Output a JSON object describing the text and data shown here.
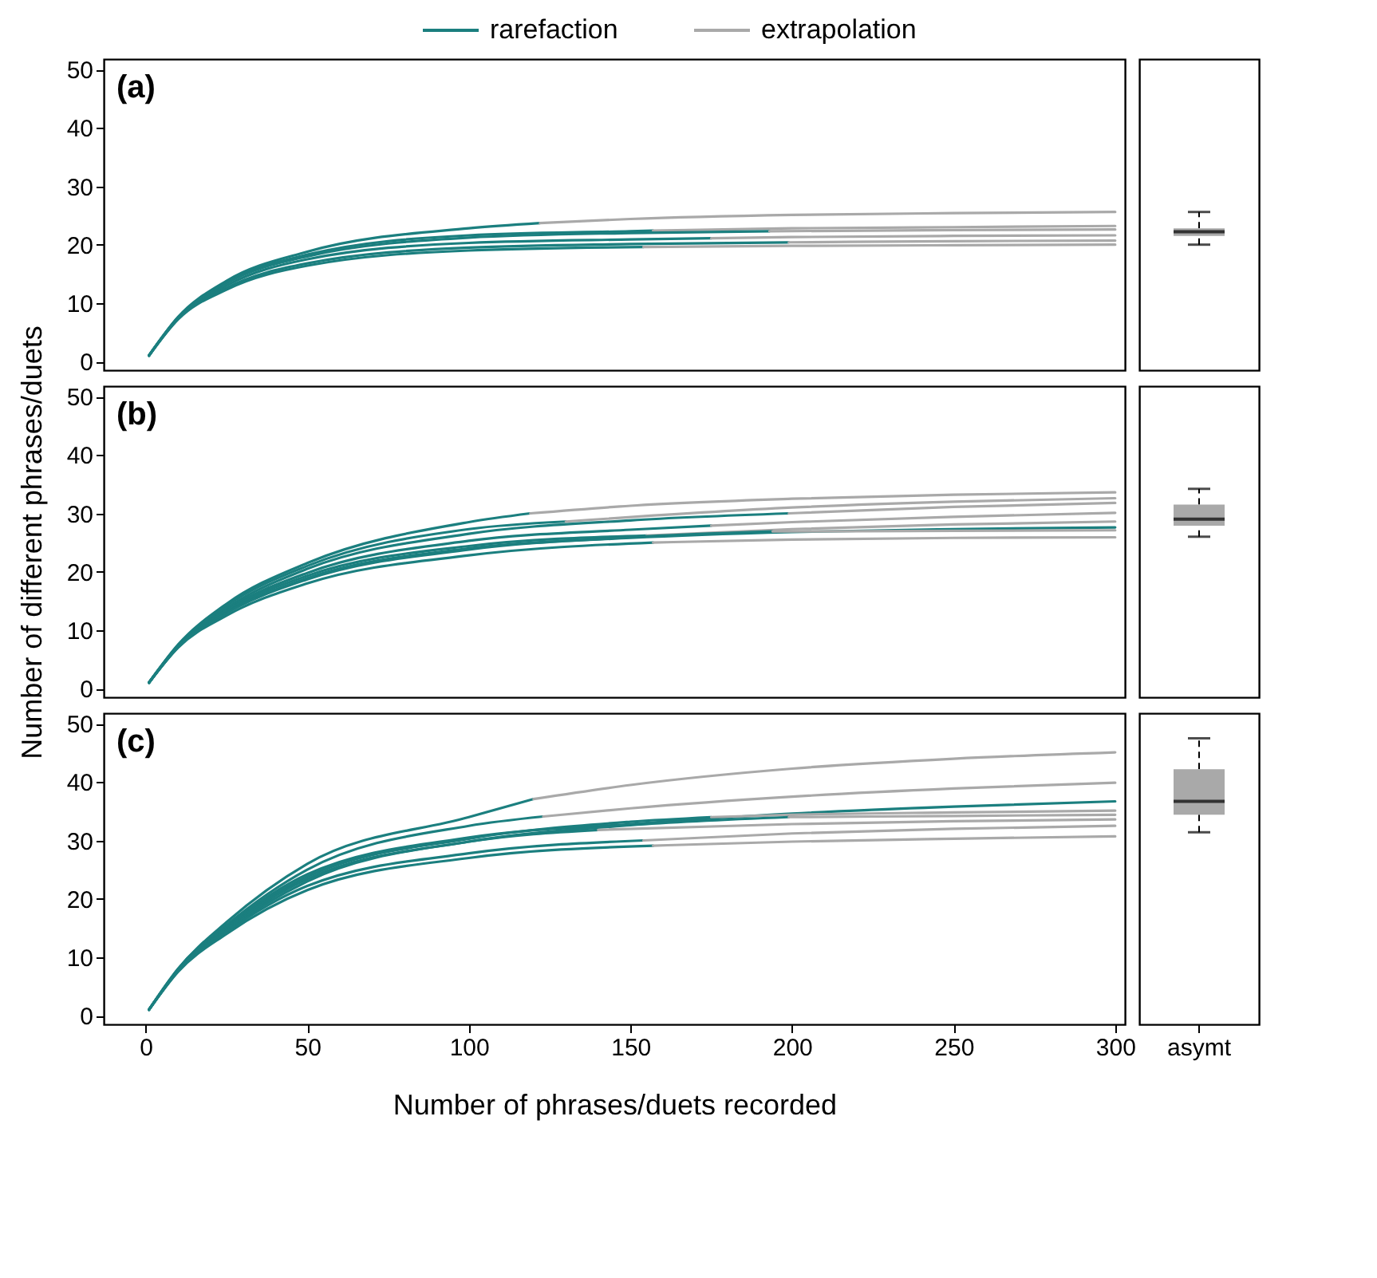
{
  "chart_data": [
    {
      "type": "line",
      "annotations": [
        "(a)"
      ],
      "xlim": [
        -13,
        303
      ],
      "ylim": [
        -1.5,
        51.8
      ],
      "xticks": [
        0,
        50,
        100,
        150,
        200,
        250,
        300
      ],
      "yticks": [
        0,
        10,
        20,
        30,
        40,
        50
      ],
      "tick_labels": "y",
      "legend": "top",
      "series": [
        {
          "name": "rarefaction",
          "color": "#1b7f7f",
          "x": [
            1,
            10,
            25,
            50,
            100,
            122
          ],
          "values": [
            1,
            7.6,
            13.8,
            18.8,
            22.8,
            23.7
          ]
        },
        {
          "name": "extrapolation",
          "color": "#a9a9a9",
          "x": [
            122,
            150,
            200,
            250,
            300
          ],
          "values": [
            23.7,
            24.4,
            25.1,
            25.4,
            25.6
          ]
        },
        {
          "color": "#1b7f7f",
          "x": [
            1,
            10,
            25,
            50,
            100,
            150,
            157
          ],
          "values": [
            1,
            7.5,
            13.5,
            18.3,
            21.6,
            22.3,
            22.4
          ]
        },
        {
          "color": "#a9a9a9",
          "x": [
            157,
            200,
            250,
            300
          ],
          "values": [
            22.4,
            22.8,
            23.0,
            23.2
          ]
        },
        {
          "color": "#1b7f7f",
          "x": [
            1,
            10,
            25,
            50,
            100,
            150,
            193
          ],
          "values": [
            1,
            7.5,
            13.4,
            18,
            21.2,
            22,
            22.3
          ]
        },
        {
          "color": "#a9a9a9",
          "x": [
            193,
            250,
            300
          ],
          "values": [
            22.3,
            22.5,
            22.6
          ]
        },
        {
          "color": "#1b7f7f",
          "x": [
            1,
            10,
            25,
            50,
            100,
            150,
            175
          ],
          "values": [
            1,
            7.4,
            13,
            17.5,
            20.3,
            20.9,
            21.1
          ]
        },
        {
          "color": "#a9a9a9",
          "x": [
            175,
            200,
            250,
            300
          ],
          "values": [
            21.1,
            21.3,
            21.5,
            21.6
          ]
        },
        {
          "color": "#1b7f7f",
          "x": [
            1,
            10,
            25,
            50,
            100,
            150,
            199
          ],
          "values": [
            1,
            7.3,
            12.6,
            16.8,
            19.5,
            20.1,
            20.4
          ]
        },
        {
          "color": "#a9a9a9",
          "x": [
            199,
            250,
            300
          ],
          "values": [
            20.4,
            20.6,
            20.7
          ]
        },
        {
          "color": "#1b7f7f",
          "x": [
            1,
            10,
            25,
            50,
            100,
            154
          ],
          "values": [
            1,
            7.2,
            12.3,
            16.4,
            19.0,
            19.6
          ]
        },
        {
          "color": "#a9a9a9",
          "x": [
            154,
            200,
            250,
            300
          ],
          "values": [
            19.6,
            19.8,
            19.9,
            20.0
          ]
        }
      ]
    },
    {
      "type": "box",
      "categories": [
        "asymt"
      ],
      "ylim": [
        -1.5,
        51.8
      ],
      "tick_labels": false,
      "color": "#a9a9a9",
      "boxes": [
        {
          "low": 20.0,
          "q1": 21.5,
          "median": 22.2,
          "q3": 22.8,
          "high": 25.6
        }
      ]
    },
    {
      "type": "line",
      "annotations": [
        "(b)"
      ],
      "ylabel": "Number of different phrases/duets",
      "xlim": [
        -13,
        303
      ],
      "ylim": [
        -1.5,
        51.8
      ],
      "xticks": [
        0,
        50,
        100,
        150,
        200,
        250,
        300
      ],
      "yticks": [
        0,
        10,
        20,
        30,
        40,
        50
      ],
      "tick_labels": "y",
      "series": [
        {
          "color": "#1b7f7f",
          "x": [
            1,
            10,
            25,
            50,
            100,
            119
          ],
          "values": [
            1,
            7.5,
            14.5,
            21.5,
            28.5,
            30.0
          ]
        },
        {
          "color": "#a9a9a9",
          "x": [
            119,
            150,
            200,
            250,
            300
          ],
          "values": [
            30.0,
            31.3,
            32.5,
            33.2,
            33.6
          ]
        },
        {
          "color": "#1b7f7f",
          "x": [
            1,
            10,
            25,
            50,
            100,
            130
          ],
          "values": [
            1,
            7.4,
            14.2,
            21,
            27.3,
            28.6
          ]
        },
        {
          "color": "#a9a9a9",
          "x": [
            130,
            200,
            250,
            300
          ],
          "values": [
            28.6,
            31,
            32,
            32.6
          ]
        },
        {
          "color": "#1b7f7f",
          "x": [
            1,
            10,
            25,
            50,
            100,
            150,
            199
          ],
          "values": [
            1,
            7.3,
            13.8,
            20.5,
            26.5,
            28.8,
            30.0
          ]
        },
        {
          "color": "#a9a9a9",
          "x": [
            199,
            250,
            300
          ],
          "values": [
            30.0,
            31.1,
            31.8
          ]
        },
        {
          "color": "#1b7f7f",
          "x": [
            1,
            10,
            25,
            50,
            100,
            150,
            175
          ],
          "values": [
            1,
            7.2,
            13.5,
            19.8,
            25.3,
            27.2,
            27.9
          ]
        },
        {
          "color": "#a9a9a9",
          "x": [
            175,
            200,
            250,
            300
          ],
          "values": [
            27.9,
            28.5,
            29.4,
            30.1
          ]
        },
        {
          "color": "#1b7f7f",
          "x": [
            1,
            10,
            25,
            50,
            100,
            155
          ],
          "values": [
            1,
            7.2,
            13.3,
            19.3,
            24.4,
            26.2
          ]
        },
        {
          "color": "#a9a9a9",
          "x": [
            155,
            200,
            250,
            300
          ],
          "values": [
            26.2,
            27.3,
            28.1,
            28.6
          ]
        },
        {
          "color": "#1b7f7f",
          "x": [
            1,
            10,
            25,
            50,
            100,
            150,
            200,
            250,
            300
          ],
          "values": [
            1,
            7.1,
            13,
            18.9,
            24,
            25.8,
            26.8,
            27.3,
            27.6
          ]
        },
        {
          "color": "#1b7f7f",
          "x": [
            1,
            10,
            25,
            50,
            100,
            150,
            194
          ],
          "values": [
            1,
            7.1,
            12.9,
            18.7,
            23.8,
            25.9,
            26.9
          ]
        },
        {
          "color": "#a9a9a9",
          "x": [
            194,
            250,
            300
          ],
          "values": [
            26.9,
            27.0,
            27.1
          ]
        },
        {
          "color": "#1b7f7f",
          "x": [
            1,
            10,
            25,
            50,
            100,
            157
          ],
          "values": [
            1,
            7,
            12.5,
            18,
            22.8,
            25.0
          ]
        },
        {
          "color": "#a9a9a9",
          "x": [
            157,
            200,
            250,
            300
          ],
          "values": [
            25.0,
            25.5,
            25.8,
            25.9
          ]
        }
      ]
    },
    {
      "type": "box",
      "categories": [
        "asymt"
      ],
      "ylim": [
        -1.5,
        51.8
      ],
      "tick_labels": false,
      "color": "#a9a9a9",
      "boxes": [
        {
          "low": 26.0,
          "q1": 27.9,
          "median": 29.0,
          "q3": 31.5,
          "high": 34.2
        }
      ]
    },
    {
      "type": "line",
      "annotations": [
        "(c)"
      ],
      "xlabel": "Number of phrases/duets recorded",
      "xlim": [
        -13,
        303
      ],
      "ylim": [
        -1.5,
        51.8
      ],
      "xticks": [
        0,
        50,
        100,
        150,
        200,
        250,
        300
      ],
      "yticks": [
        0,
        10,
        20,
        30,
        40,
        50
      ],
      "series": [
        {
          "color": "#1b7f7f",
          "x": [
            1,
            10,
            25,
            50,
            100,
            120
          ],
          "values": [
            1,
            8,
            16,
            26,
            34,
            37.1
          ]
        },
        {
          "color": "#a9a9a9",
          "x": [
            120,
            150,
            200,
            250,
            300
          ],
          "values": [
            37.1,
            39.5,
            42.3,
            44.0,
            45.1
          ]
        },
        {
          "color": "#1b7f7f",
          "x": [
            1,
            10,
            25,
            50,
            100,
            123
          ],
          "values": [
            1,
            8,
            15.5,
            25,
            32.5,
            34.1
          ]
        },
        {
          "color": "#a9a9a9",
          "x": [
            123,
            150,
            200,
            250,
            300
          ],
          "values": [
            34.1,
            35.5,
            37.5,
            38.9,
            39.9
          ]
        },
        {
          "color": "#1b7f7f",
          "x": [
            1,
            10,
            25,
            50,
            100,
            150,
            200,
            250,
            300
          ],
          "values": [
            1,
            7.8,
            15.2,
            24.2,
            30.5,
            32.8,
            34.6,
            35.8,
            36.7
          ]
        },
        {
          "color": "#1b7f7f",
          "x": [
            1,
            10,
            25,
            50,
            100,
            150,
            175
          ],
          "values": [
            1,
            7.8,
            15,
            23.8,
            30.3,
            33.2,
            34.0
          ]
        },
        {
          "color": "#a9a9a9",
          "x": [
            175,
            200,
            250,
            300
          ],
          "values": [
            34.0,
            34.4,
            34.8,
            35.1
          ]
        },
        {
          "color": "#1b7f7f",
          "x": [
            1,
            10,
            25,
            50,
            100,
            150,
            199
          ],
          "values": [
            1,
            7.7,
            14.8,
            23.4,
            29.8,
            32.6,
            34.0
          ]
        },
        {
          "color": "#a9a9a9",
          "x": [
            199,
            250,
            300
          ],
          "values": [
            34.0,
            34.2,
            34.4
          ]
        },
        {
          "color": "#1b7f7f",
          "x": [
            1,
            10,
            25,
            50,
            100,
            140
          ],
          "values": [
            1,
            7.7,
            14.6,
            23,
            29.8,
            31.8
          ]
        },
        {
          "color": "#a9a9a9",
          "x": [
            140,
            200,
            250,
            300
          ],
          "values": [
            31.8,
            32.8,
            33.3,
            33.6
          ]
        },
        {
          "color": "#1b7f7f",
          "x": [
            1,
            10,
            25,
            50,
            100,
            154
          ],
          "values": [
            1,
            7.6,
            14.3,
            22.2,
            27.8,
            30.0
          ]
        },
        {
          "color": "#a9a9a9",
          "x": [
            154,
            200,
            250,
            300
          ],
          "values": [
            30.0,
            31.2,
            32,
            32.5
          ]
        },
        {
          "color": "#1b7f7f",
          "x": [
            1,
            10,
            25,
            50,
            100,
            157
          ],
          "values": [
            1,
            7.5,
            14,
            21.5,
            27,
            29.1
          ]
        },
        {
          "color": "#a9a9a9",
          "x": [
            157,
            200,
            250,
            300
          ],
          "values": [
            29.1,
            29.8,
            30.3,
            30.7
          ]
        }
      ]
    },
    {
      "type": "box",
      "categories": [
        "asymt"
      ],
      "ylim": [
        -1.5,
        51.8
      ],
      "tick_labels": "x",
      "color": "#a9a9a9",
      "boxes": [
        {
          "low": 31.4,
          "q1": 34.4,
          "median": 36.7,
          "q3": 42.2,
          "high": 47.5
        }
      ]
    }
  ]
}
